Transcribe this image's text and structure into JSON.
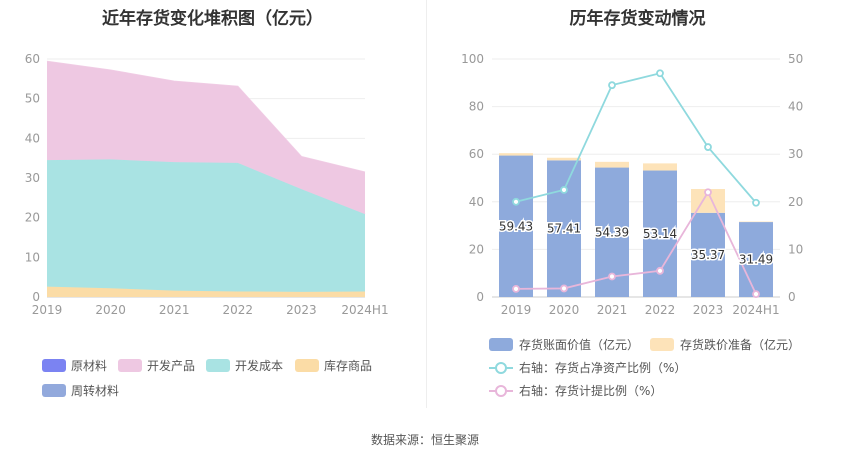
{
  "titles": {
    "left": "近年存货变化堆积图（亿元）",
    "right": "历年存货变动情况"
  },
  "footer": "数据来源：恒生聚源",
  "colors": {
    "raw_materials": "#7b83f2",
    "developed_products": "#eec8e2",
    "development_cost": "#a9e3e3",
    "inventory_goods": "#fbdca6",
    "revolving_materials": "#92a9dc",
    "book_value": "#8eaadc",
    "impairment": "#fde3b9",
    "net_assets_ratio": "#8fd9de",
    "provision_ratio": "#e8b6da"
  },
  "chart_data": [
    {
      "type": "area",
      "stacked": true,
      "title": "近年存货变化堆积图（亿元）",
      "categories": [
        "2019",
        "2020",
        "2021",
        "2022",
        "2023",
        "2024H1"
      ],
      "ylim": [
        0,
        60
      ],
      "yticks": [
        0,
        10,
        20,
        30,
        40,
        50,
        60
      ],
      "grid": true,
      "legend_position": "bottom",
      "series": [
        {
          "key": "inventory_goods",
          "name": "库存商品",
          "values": [
            2.6,
            2.2,
            1.6,
            1.4,
            1.3,
            1.4
          ]
        },
        {
          "key": "development_cost",
          "name": "开发成本",
          "values": [
            31.9,
            32.5,
            32.4,
            32.4,
            25.9,
            19.5
          ]
        },
        {
          "key": "developed_products",
          "name": "开发产品",
          "values": [
            24.9,
            22.5,
            20.4,
            19.3,
            8.2,
            10.6
          ]
        },
        {
          "key": "raw_materials",
          "name": "原材料",
          "values": [
            0,
            0,
            0,
            0,
            0,
            0
          ]
        },
        {
          "key": "revolving_materials",
          "name": "周转材料",
          "values": [
            0,
            0,
            0,
            0,
            0,
            0
          ]
        }
      ],
      "legend": [
        {
          "key": "raw_materials",
          "label": "原材料"
        },
        {
          "key": "developed_products",
          "label": "开发产品"
        },
        {
          "key": "development_cost",
          "label": "开发成本"
        },
        {
          "key": "inventory_goods",
          "label": "库存商品"
        },
        {
          "key": "revolving_materials",
          "label": "周转材料"
        }
      ]
    },
    {
      "type": "bar",
      "stacked": true,
      "title": "历年存货变动情况",
      "categories": [
        "2019",
        "2020",
        "2021",
        "2022",
        "2023",
        "2024H1"
      ],
      "ylim": [
        0,
        100
      ],
      "yticks": [
        0,
        20,
        40,
        60,
        80,
        100
      ],
      "y2lim": [
        0,
        50
      ],
      "y2ticks": [
        0,
        10,
        20,
        30,
        40,
        50
      ],
      "grid": true,
      "legend_position": "bottom",
      "series": [
        {
          "key": "book_value",
          "name": "存货账面价值（亿元）",
          "values": [
            59.43,
            57.41,
            54.39,
            53.14,
            35.37,
            31.49
          ],
          "labels": [
            "59.43",
            "57.41",
            "54.39",
            "53.14",
            "35.37",
            "31.49"
          ]
        },
        {
          "key": "impairment",
          "name": "存货跌价准备（亿元）",
          "values": [
            1.0,
            1.1,
            2.4,
            3.0,
            10.0,
            0.2
          ]
        }
      ],
      "lines": [
        {
          "key": "net_assets_ratio",
          "name": "右轴：存货占净资产比例（%）",
          "axis": "right",
          "values": [
            20.0,
            22.5,
            44.5,
            47.0,
            31.5,
            19.8
          ]
        },
        {
          "key": "provision_ratio",
          "name": "右轴：存货计提比例（%）",
          "axis": "right",
          "values": [
            1.7,
            1.8,
            4.3,
            5.5,
            22.0,
            0.6
          ]
        }
      ]
    }
  ]
}
